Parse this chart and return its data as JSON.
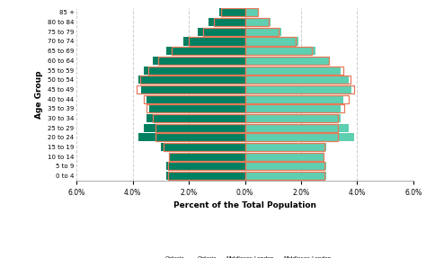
{
  "age_groups": [
    "0 to 4",
    "5 to 9",
    "10 to 14",
    "15 to 19",
    "20 to 24",
    "25 to 29",
    "30 to 34",
    "35 to 39",
    "40 to 44",
    "45 to 49",
    "50 to 54",
    "55 to 59",
    "60 to 64",
    "65 to 69",
    "70 to 74",
    "75 to 79",
    "80 to 84",
    "85 +"
  ],
  "ml_females": [
    2.8,
    2.8,
    2.7,
    3.0,
    3.8,
    3.6,
    3.5,
    3.4,
    3.5,
    3.7,
    3.8,
    3.6,
    3.3,
    2.8,
    2.2,
    1.7,
    1.3,
    0.9
  ],
  "ml_males": [
    2.9,
    2.9,
    2.8,
    2.9,
    3.9,
    3.7,
    3.4,
    3.4,
    3.5,
    3.8,
    3.7,
    3.4,
    3.0,
    2.5,
    1.9,
    1.3,
    0.9,
    0.5
  ],
  "on_females": [
    2.75,
    2.75,
    2.7,
    2.9,
    3.2,
    3.2,
    3.3,
    3.5,
    3.6,
    3.85,
    3.75,
    3.45,
    3.1,
    2.6,
    2.0,
    1.5,
    1.1,
    0.85
  ],
  "on_males": [
    2.85,
    2.85,
    2.8,
    2.85,
    3.3,
    3.3,
    3.3,
    3.55,
    3.7,
    3.9,
    3.75,
    3.5,
    3.0,
    2.4,
    1.8,
    1.2,
    0.85,
    0.45
  ],
  "ml_females_color": "#008060",
  "ml_males_color": "#5ecfb0",
  "on_color": "#e8795a",
  "background_color": "#ffffff",
  "xlabel": "Percent of the Total Population",
  "ylabel": "Age Group",
  "xlim": 6.0
}
